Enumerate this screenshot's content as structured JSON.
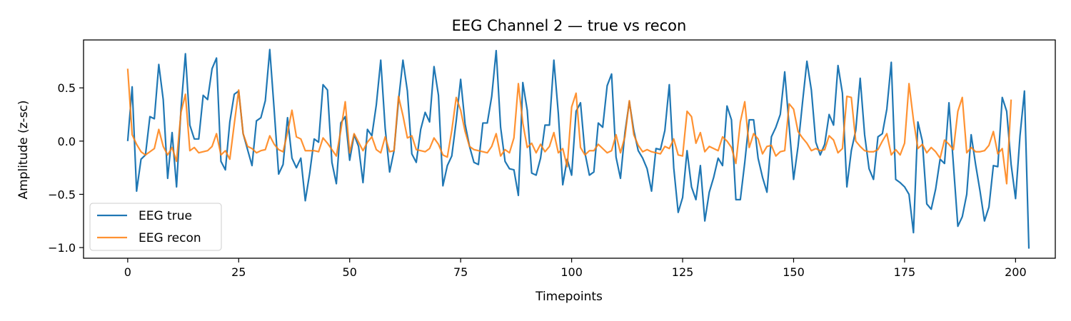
{
  "chart_data": {
    "type": "line",
    "title": "EEG Channel 2 — true vs recon",
    "xlabel": "Timepoints",
    "ylabel": "Amplitude (z-sc)",
    "xlim": [
      -9.95,
      208.95
    ],
    "ylim": [
      -1.1,
      0.95
    ],
    "xticks": [
      0,
      25,
      50,
      75,
      100,
      125,
      150,
      175,
      200
    ],
    "yticks": [
      -1.0,
      -0.5,
      0.0,
      0.5
    ],
    "ytick_labels": [
      "−1.0",
      "−0.5",
      "0.0",
      "0.5"
    ],
    "grid": false,
    "legend_position": "lower-left",
    "series": [
      {
        "name": "EEG true",
        "color": "#1f77b4",
        "values": [
          0.0,
          0.51,
          -0.47,
          -0.17,
          -0.13,
          0.23,
          0.21,
          0.72,
          0.39,
          -0.35,
          0.08,
          -0.43,
          0.3,
          0.82,
          0.15,
          0.02,
          0.02,
          0.43,
          0.39,
          0.68,
          0.78,
          -0.19,
          -0.27,
          0.18,
          0.44,
          0.47,
          0.07,
          -0.08,
          -0.23,
          0.19,
          0.22,
          0.38,
          0.86,
          0.29,
          -0.31,
          -0.22,
          0.22,
          -0.16,
          -0.25,
          -0.16,
          -0.56,
          -0.3,
          0.02,
          -0.01,
          0.53,
          0.48,
          -0.2,
          -0.4,
          0.17,
          0.23,
          -0.18,
          0.06,
          -0.05,
          -0.39,
          0.11,
          0.05,
          0.34,
          0.76,
          0.12,
          -0.29,
          -0.09,
          0.38,
          0.76,
          0.47,
          -0.12,
          -0.2,
          0.11,
          0.27,
          0.18,
          0.7,
          0.43,
          -0.42,
          -0.23,
          -0.14,
          0.19,
          0.58,
          0.16,
          -0.05,
          -0.2,
          -0.22,
          0.17,
          0.17,
          0.42,
          0.85,
          0.13,
          -0.19,
          -0.26,
          -0.27,
          -0.51,
          0.55,
          0.29,
          -0.3,
          -0.32,
          -0.16,
          0.15,
          0.15,
          0.76,
          0.26,
          -0.41,
          -0.17,
          -0.32,
          0.28,
          0.36,
          -0.11,
          -0.32,
          -0.29,
          0.17,
          0.13,
          0.52,
          0.63,
          -0.15,
          -0.35,
          0.08,
          0.37,
          0.1,
          -0.09,
          -0.16,
          -0.26,
          -0.47,
          -0.07,
          -0.08,
          0.1,
          0.53,
          -0.25,
          -0.67,
          -0.53,
          -0.09,
          -0.43,
          -0.55,
          -0.23,
          -0.75,
          -0.48,
          -0.34,
          -0.16,
          -0.23,
          0.33,
          0.2,
          -0.55,
          -0.55,
          -0.2,
          0.2,
          0.2,
          -0.16,
          -0.34,
          -0.48,
          0.04,
          0.13,
          0.25,
          0.65,
          0.14,
          -0.36,
          -0.05,
          0.36,
          0.75,
          0.48,
          -0.01,
          -0.13,
          -0.03,
          0.25,
          0.15,
          0.71,
          0.45,
          -0.43,
          -0.09,
          0.1,
          0.59,
          0.06,
          -0.26,
          -0.36,
          0.04,
          0.07,
          0.3,
          0.74,
          -0.36,
          -0.39,
          -0.43,
          -0.5,
          -0.86,
          0.18,
          0.0,
          -0.59,
          -0.64,
          -0.45,
          -0.17,
          -0.21,
          0.36,
          -0.22,
          -0.8,
          -0.71,
          -0.5,
          0.06,
          -0.22,
          -0.47,
          -0.75,
          -0.62,
          -0.23,
          -0.24,
          0.41,
          0.28,
          -0.22,
          -0.54,
          0.05,
          0.47,
          -1.01
        ]
      },
      {
        "name": "EEG recon",
        "color": "#ff7f0e",
        "values": [
          0.68,
          0.06,
          -0.03,
          -0.1,
          -0.13,
          -0.1,
          -0.07,
          0.11,
          -0.05,
          -0.13,
          -0.06,
          -0.19,
          0.27,
          0.44,
          -0.09,
          -0.06,
          -0.11,
          -0.1,
          -0.09,
          -0.05,
          0.07,
          -0.13,
          -0.09,
          -0.17,
          0.16,
          0.48,
          0.07,
          -0.05,
          -0.07,
          -0.11,
          -0.09,
          -0.08,
          0.05,
          -0.03,
          -0.08,
          -0.1,
          0.08,
          0.29,
          0.04,
          0.02,
          -0.09,
          -0.09,
          -0.09,
          -0.1,
          0.03,
          -0.02,
          -0.08,
          -0.14,
          0.1,
          0.37,
          -0.11,
          0.07,
          -0.01,
          -0.09,
          -0.01,
          0.04,
          -0.08,
          -0.11,
          0.04,
          -0.1,
          -0.09,
          0.42,
          0.24,
          0.03,
          0.05,
          -0.08,
          -0.09,
          -0.1,
          -0.07,
          0.03,
          -0.03,
          -0.13,
          -0.15,
          0.1,
          0.41,
          0.29,
          0.09,
          -0.05,
          -0.08,
          -0.09,
          -0.1,
          -0.11,
          -0.05,
          0.07,
          -0.14,
          -0.08,
          -0.11,
          0.03,
          0.54,
          0.17,
          -0.06,
          -0.02,
          -0.11,
          -0.03,
          -0.1,
          -0.05,
          0.08,
          -0.11,
          -0.07,
          -0.24,
          0.32,
          0.45,
          -0.06,
          -0.13,
          -0.09,
          -0.09,
          -0.03,
          -0.07,
          -0.11,
          -0.09,
          0.06,
          -0.11,
          0.04,
          0.38,
          0.06,
          -0.04,
          -0.1,
          -0.08,
          -0.1,
          -0.11,
          -0.12,
          -0.05,
          -0.07,
          0.02,
          -0.13,
          -0.14,
          0.28,
          0.23,
          -0.02,
          0.08,
          -0.1,
          -0.05,
          -0.07,
          -0.09,
          0.04,
          0.0,
          -0.06,
          -0.21,
          0.18,
          0.37,
          -0.06,
          0.07,
          0.02,
          -0.12,
          -0.05,
          -0.04,
          -0.14,
          -0.1,
          -0.09,
          0.35,
          0.3,
          0.09,
          0.03,
          -0.02,
          -0.09,
          -0.07,
          -0.09,
          -0.08,
          0.05,
          0.01,
          -0.11,
          -0.07,
          0.42,
          0.41,
          0.0,
          -0.05,
          -0.09,
          -0.1,
          -0.1,
          -0.08,
          0.0,
          0.07,
          -0.13,
          -0.08,
          -0.13,
          -0.02,
          0.54,
          0.2,
          -0.07,
          -0.03,
          -0.11,
          -0.06,
          -0.1,
          -0.16,
          0.01,
          -0.03,
          -0.08,
          0.28,
          0.41,
          -0.11,
          -0.06,
          -0.1,
          -0.1,
          -0.09,
          -0.04,
          0.09,
          -0.12,
          -0.07,
          -0.4,
          0.39
        ]
      }
    ]
  }
}
